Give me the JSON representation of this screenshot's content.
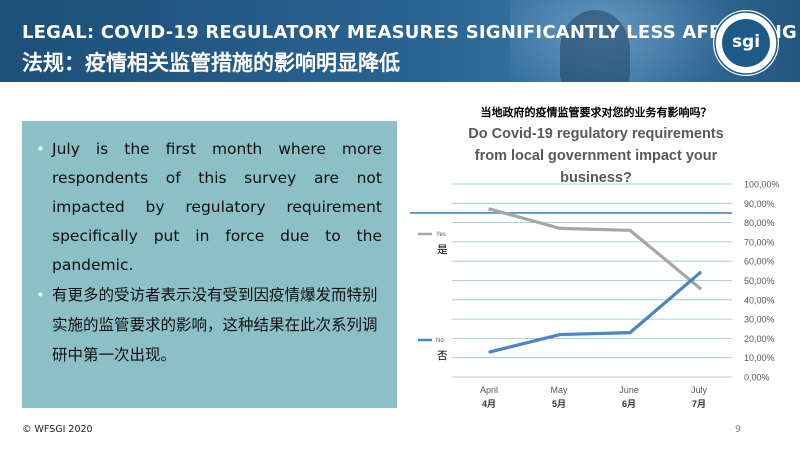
{
  "header": {
    "title_en": "LEGAL: COVID-19 REGULATORY MEASURES SIGNIFICANTLY LESS AFFECTING",
    "title_zh": "法规：疫情相关监管措施的影响明显降低",
    "logo_text": "sgi",
    "logo_ring_text": "WORLD FEDERATION · SPORTING GOODS INDUSTRY"
  },
  "bullets": [
    "July is the first month where more respondents of this survey are not impacted by regulatory requirement specifically put in force due to the pandemic.",
    "有更多的受访者表示没有受到因疫情爆发而特别实施的监管要求的影响，这种结果在此次系列调研中第一次出现。"
  ],
  "footer": {
    "copyright": "© WFSGI 2020",
    "page_number": "9"
  },
  "chart_data": {
    "type": "line",
    "title_zh": "当地政府的疫情监管要求对您的业务有影响吗？",
    "title": "Do Covid-19 regulatory requirements from local government impact your business?",
    "categories": [
      "April",
      "May",
      "June",
      "July"
    ],
    "categories_zh": [
      "4月",
      "5月",
      "6月",
      "7月"
    ],
    "ylim": [
      0,
      100
    ],
    "yticks": [
      "0,00%",
      "10,00%",
      "20,00%",
      "30,00%",
      "40,00%",
      "50,00%",
      "60,00%",
      "70,00%",
      "80,00%",
      "90,00%",
      "100,00%"
    ],
    "grid": true,
    "series": [
      {
        "name": "Yes",
        "name_zh": "是",
        "color": "#a6a6a6",
        "values": [
          87,
          77,
          76,
          46
        ]
      },
      {
        "name": "No",
        "name_zh": "否",
        "color": "#4a86c5",
        "values": [
          13,
          22,
          23,
          54
        ]
      }
    ],
    "highlight_line": {
      "value": 85,
      "color": "#4a86c5"
    }
  }
}
